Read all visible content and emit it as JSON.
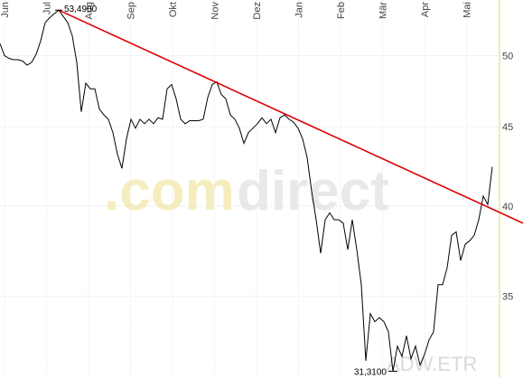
{
  "chart_data": {
    "type": "line",
    "xticks": [
      "Jun",
      "Jul",
      "Aug",
      "Sep",
      "Okt",
      "Nov",
      "Dez",
      "Jan",
      "Feb",
      "Mär",
      "Apr",
      "Mai"
    ],
    "ylim": [
      31,
      54.3
    ],
    "yticks": [
      35,
      40,
      45,
      50
    ],
    "log_scale": true,
    "grid": true,
    "series": [
      {
        "color": "#000000",
        "values": [
          50.9,
          50.0,
          49.8,
          49.7,
          49.7,
          49.6,
          49.3,
          49.5,
          50.1,
          51.1,
          52.5,
          52.9,
          53.2,
          53.49,
          53.0,
          52.5,
          51.5,
          49.5,
          46.0,
          48.0,
          47.6,
          47.6,
          46.2,
          45.8,
          45.5,
          44.6,
          43.2,
          42.3,
          44.2,
          45.5,
          44.9,
          45.5,
          45.2,
          45.5,
          45.2,
          45.6,
          45.5,
          47.6,
          47.9,
          46.9,
          45.5,
          45.2,
          45.4,
          45.4,
          45.4,
          45.5,
          47.0,
          47.9,
          48.1,
          47.2,
          46.9,
          45.8,
          45.5,
          44.9,
          43.9,
          44.6,
          44.9,
          45.2,
          45.6,
          45.2,
          45.5,
          44.6,
          45.6,
          45.8,
          45.5,
          45.3,
          44.9,
          44.2,
          43.0,
          40.9,
          39.2,
          37.3,
          39.2,
          39.6,
          39.2,
          39.2,
          39.0,
          37.5,
          39.2,
          37.5,
          35.6,
          31.8,
          34.1,
          33.7,
          33.9,
          33.7,
          33.2,
          31.31,
          32.5,
          32.0,
          33.0,
          31.9,
          32.5,
          31.6,
          32.1,
          32.8,
          33.2,
          35.6,
          35.6,
          36.5,
          38.3,
          38.5,
          36.9,
          37.8,
          38.0,
          38.3,
          39.2,
          40.6,
          40.1,
          42.4
        ]
      }
    ],
    "trend_line": {
      "color": "#dd0000",
      "values": [
        53.49,
        39.0
      ]
    },
    "high": {
      "value": 53.49,
      "label": "53,4900"
    },
    "low": {
      "value": 31.31,
      "label": "31,3100"
    },
    "watermark": [
      ".com",
      "direct"
    ],
    "symbol": "ADW.ETR"
  }
}
